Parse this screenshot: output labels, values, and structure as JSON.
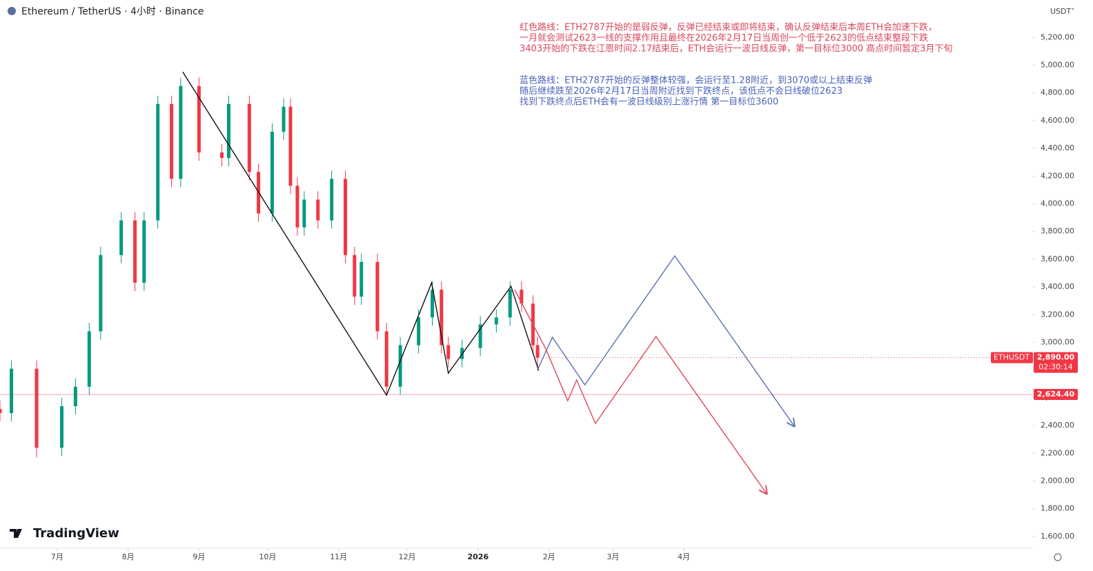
{
  "chart_data": {
    "type": "candlestick",
    "title": "Ethereum / TetherUS · 4小时 · Binance",
    "y_unit": "USDT",
    "watermark": "TradingView",
    "symbol": "ETHUSDT",
    "last_price": {
      "value": 2890,
      "label": "2,890.00"
    },
    "countdown": "02:30:14",
    "level": {
      "value": 2624.4,
      "label": "2,624.40"
    },
    "up_color": "#089981",
    "down_color": "#f23645",
    "xlim": [
      5,
      456
    ],
    "ylim": [
      1515,
      5470
    ],
    "xticks": [
      {
        "value": 30,
        "label": "7月"
      },
      {
        "value": 61,
        "label": "8月"
      },
      {
        "value": 92,
        "label": "9月"
      },
      {
        "value": 122,
        "label": "10月"
      },
      {
        "value": 153,
        "label": "11月"
      },
      {
        "value": 183,
        "label": "12月"
      },
      {
        "value": 214,
        "label": "2026"
      },
      {
        "value": 245,
        "label": "2月"
      },
      {
        "value": 273,
        "label": "3月"
      },
      {
        "value": 304,
        "label": "4月"
      }
    ],
    "yticks": [
      {
        "value": 1600,
        "label": "1,600.00"
      },
      {
        "value": 1800,
        "label": "1,800.00"
      },
      {
        "value": 2000,
        "label": "2,000.00"
      },
      {
        "value": 2200,
        "label": "2,200.00"
      },
      {
        "value": 2400,
        "label": "2,400.00"
      },
      {
        "value": 2600,
        "label": "2,600.00"
      },
      {
        "value": 2800,
        "label": "2,800.00"
      },
      {
        "value": 3000,
        "label": "3,000.00"
      },
      {
        "value": 3200,
        "label": "3,200.00"
      },
      {
        "value": 3400,
        "label": "3,400.00"
      },
      {
        "value": 3600,
        "label": "3,600.00"
      },
      {
        "value": 3800,
        "label": "3,800.00"
      },
      {
        "value": 4000,
        "label": "4,000.00"
      },
      {
        "value": 4200,
        "label": "4,200.00"
      },
      {
        "value": 4400,
        "label": "4,400.00"
      },
      {
        "value": 4600,
        "label": "4,600.00"
      },
      {
        "value": 4800,
        "label": "4,800.00"
      },
      {
        "value": 5000,
        "label": "5,000.00"
      },
      {
        "value": 5200,
        "label": "5,200.00"
      }
    ],
    "x": [
      5,
      10,
      21,
      32,
      38,
      44,
      49,
      58,
      64,
      68,
      74,
      80,
      84,
      92,
      102,
      105,
      114,
      118,
      124,
      129,
      132,
      135,
      138,
      144,
      150,
      156,
      160,
      163,
      170,
      174,
      180,
      188,
      194,
      198,
      201,
      207,
      215,
      222,
      228,
      233,
      238,
      240
    ],
    "open": [
      2520,
      2490,
      2810,
      2240,
      2540,
      2680,
      3080,
      3630,
      3880,
      3430,
      3880,
      4720,
      4180,
      4850,
      4370,
      4330,
      4720,
      4230,
      3930,
      4520,
      4700,
      4130,
      3830,
      4030,
      3880,
      4180,
      3630,
      3330,
      3580,
      3080,
      2680,
      2980,
      3180,
      3380,
      2980,
      2880,
      2960,
      3130,
      3180,
      3380,
      3280,
      2980
    ],
    "high": [
      2580,
      2870,
      2870,
      2600,
      2740,
      3140,
      3690,
      3940,
      3940,
      3940,
      4780,
      4780,
      4910,
      4910,
      4430,
      4780,
      4780,
      4290,
      4580,
      4760,
      4760,
      4190,
      4090,
      4090,
      4240,
      4240,
      3690,
      3640,
      3640,
      3140,
      3040,
      3240,
      3440,
      3440,
      3040,
      3020,
      3190,
      3240,
      3440,
      3440,
      3340,
      3040
    ],
    "low": [
      2430,
      2430,
      2170,
      2180,
      2480,
      2620,
      3020,
      3570,
      3370,
      3370,
      3820,
      4120,
      4120,
      4310,
      4270,
      4270,
      4170,
      3870,
      3870,
      4460,
      4070,
      3770,
      3770,
      3820,
      3820,
      3570,
      3270,
      3270,
      3020,
      2620,
      2620,
      2920,
      3120,
      2920,
      2820,
      2820,
      2900,
      3070,
      3120,
      3220,
      2920,
      2830
    ],
    "close": [
      2490,
      2810,
      2240,
      2540,
      2680,
      3080,
      3630,
      3880,
      3430,
      3880,
      4720,
      4180,
      4850,
      4370,
      4330,
      4720,
      4230,
      3930,
      4520,
      4700,
      4130,
      3830,
      4030,
      3880,
      4180,
      3630,
      3330,
      3580,
      3080,
      2680,
      2980,
      3180,
      3380,
      2980,
      2880,
      2960,
      3130,
      3180,
      3380,
      3280,
      2980,
      2890
    ],
    "drawings": [
      {
        "color": "#111111",
        "x": [
          84.9,
          174,
          193.7,
          201,
          228.4,
          240.5
        ],
        "y": [
          4951,
          2619,
          3430,
          2778,
          3405,
          2798
        ]
      },
      {
        "color": "#5b6fb5",
        "x": [
          239.9,
          246.5,
          260.7,
          300,
          352.3
        ],
        "y": [
          2798,
          3037,
          2694,
          3624,
          2395
        ]
      },
      {
        "color": "#d9475a",
        "x": [
          230,
          243.5,
          253.2,
          257.1,
          265.3,
          291.8,
          340.2
        ],
        "y": [
          3380,
          2957,
          2579,
          2729,
          2415,
          3042,
          1908
        ]
      }
    ],
    "annotations": [
      {
        "color": "#d9475a",
        "lines": [
          "红色路线：ETH2787开始的是弱反弹，反弹已经结束或即将结束，确认反弹结束后本周ETH会加速下跌，",
          "一月就会测试2623一线的支撑作用且最终在2026年2月17日当周创一个低于2623的低点结束整段下跌",
          "3403开始的下跌在江恩时间2.17结束后，ETH会运行一波日线反弹，第一目标位3000 高点时间暂定3月下旬"
        ]
      },
      {
        "color": "#4a63b8",
        "lines": [
          "蓝色路线：ETH2787开始的反弹整体较强，会运行至1.28附近，到3070或以上结束反弹",
          "随后继续跌至2026年2月17日当周附近找到下跌终点，该低点不会日线破位2623",
          "找到下跌终点后ETH会有一波日线级别上涨行情 第一目标位3600"
        ]
      }
    ]
  }
}
